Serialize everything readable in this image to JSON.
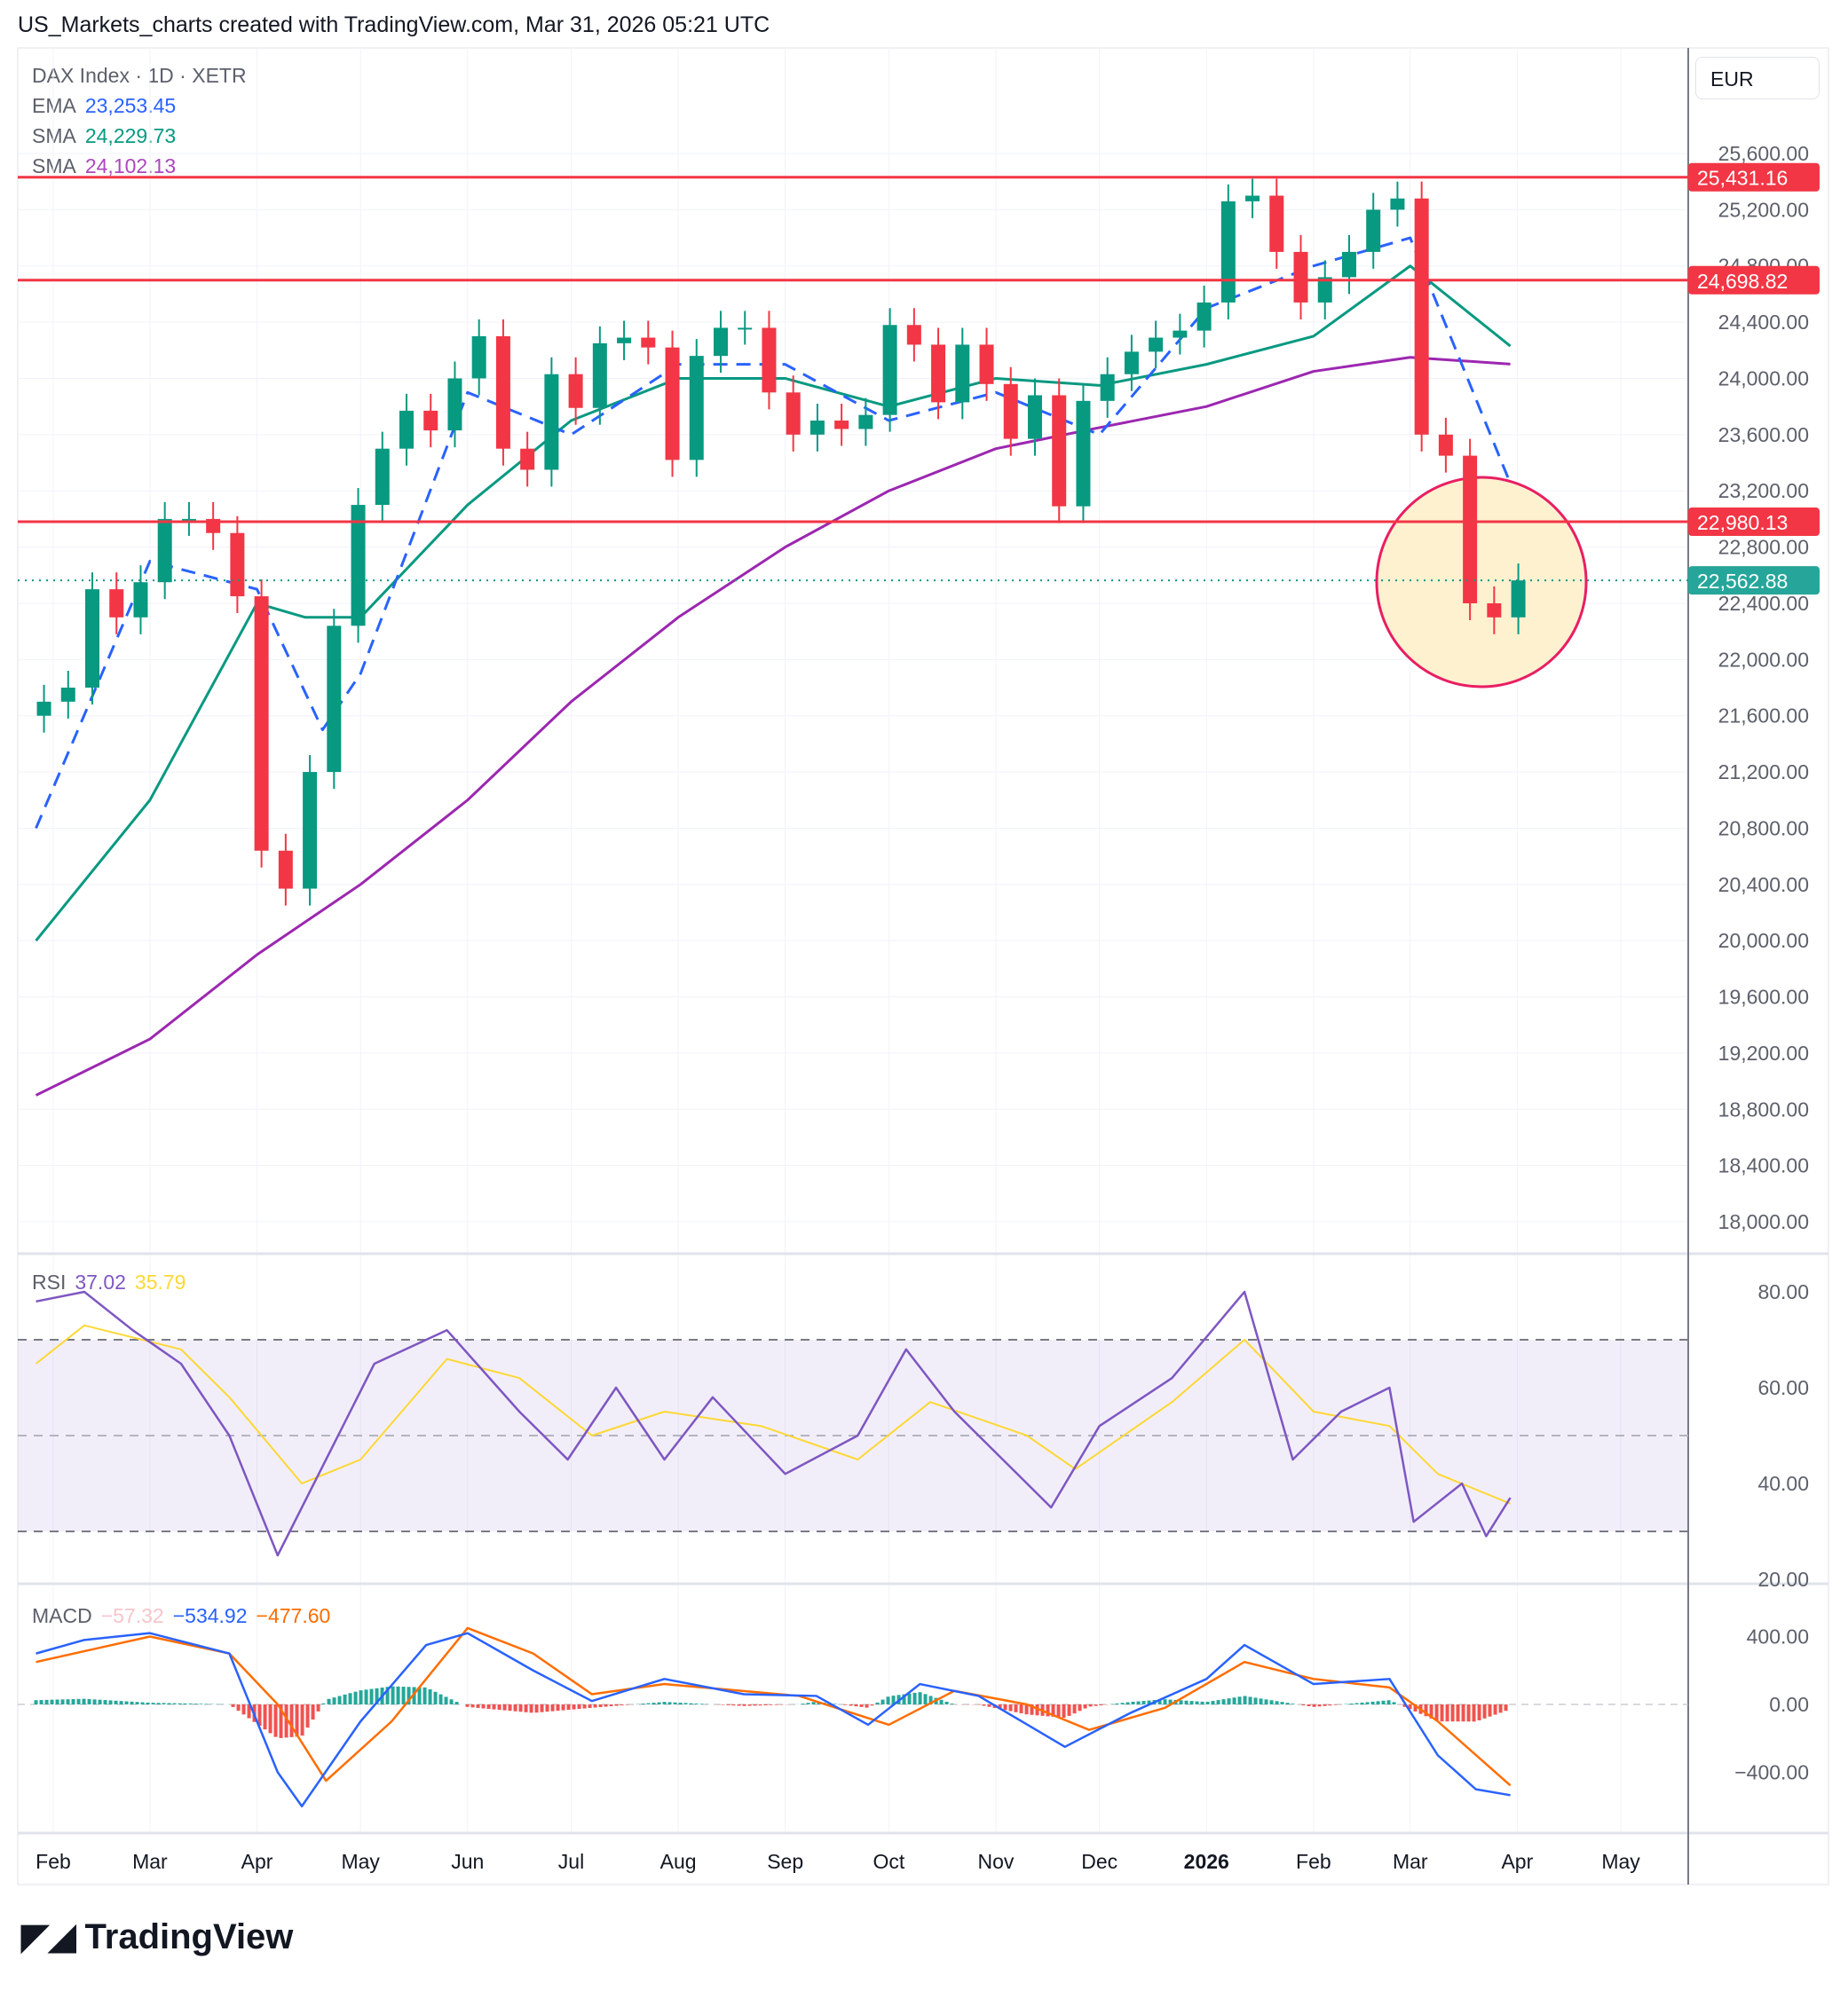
{
  "header": {
    "title": "US_Markets_charts created with TradingView.com, Mar 31, 2026 05:21 UTC"
  },
  "legend": {
    "symbol": "DAX Index · 1D · XETR",
    "ema_label": "EMA",
    "ema_value": "23,253.45",
    "sma1_label": "SMA",
    "sma1_value": "24,229.73",
    "sma2_label": "SMA",
    "sma2_value": "24,102.13"
  },
  "currency": "EUR",
  "rsi_legend": {
    "label": "RSI",
    "value": "37.02",
    "ma_value": "35.79"
  },
  "macd_legend": {
    "label": "MACD",
    "hist": "−57.32",
    "macd": "−534.92",
    "signal": "−477.60"
  },
  "brand": "TradingView",
  "colors": {
    "up": "#089981",
    "down": "#f23645",
    "ema": "#2962ff",
    "sma50": "#089981",
    "sma200": "#9c27b0",
    "level": "#f23645",
    "rsi": "#7e57c2",
    "rsi_ma": "#fdd835",
    "macd": "#2962ff",
    "signal": "#ff6d00",
    "circle": "#e91e63",
    "circle_fill": "#fdf1d0"
  },
  "chart_data": [
    {
      "type": "candlestick",
      "title": "DAX Index · 1D · XETR",
      "ylim": [
        17800,
        25800
      ],
      "y_ticks": [
        25600,
        25200,
        24800,
        24400,
        24000,
        23600,
        23200,
        22800,
        22400,
        22000,
        21600,
        21200,
        20800,
        20400,
        20000,
        19600,
        19200,
        18800,
        18400,
        18000
      ],
      "y_tick_labels": [
        "25,600.00",
        "25,200.00",
        "24,800.00",
        "24,400.00",
        "24,000.00",
        "23,600.00",
        "23,200.00",
        "22,800.00",
        "22,400.00",
        "22,000.00",
        "21,600.00",
        "21,200.00",
        "20,800.00",
        "20,400.00",
        "20,000.00",
        "19,600.00",
        "19,200.00",
        "18,800.00",
        "18,400.00",
        "18,000.00"
      ],
      "x_ticks": [
        {
          "date": "2025-02-01",
          "label": "Feb"
        },
        {
          "date": "2025-03-01",
          "label": "Mar"
        },
        {
          "date": "2025-04-01",
          "label": "Apr"
        },
        {
          "date": "2025-05-01",
          "label": "May"
        },
        {
          "date": "2025-06-01",
          "label": "Jun"
        },
        {
          "date": "2025-07-01",
          "label": "Jul"
        },
        {
          "date": "2025-08-01",
          "label": "Aug"
        },
        {
          "date": "2025-09-01",
          "label": "Sep"
        },
        {
          "date": "2025-10-01",
          "label": "Oct"
        },
        {
          "date": "2025-11-01",
          "label": "Nov"
        },
        {
          "date": "2025-12-01",
          "label": "Dec"
        },
        {
          "date": "2026-01-01",
          "label": "2026"
        },
        {
          "date": "2026-02-01",
          "label": "Feb"
        },
        {
          "date": "2026-03-01",
          "label": "Mar"
        },
        {
          "date": "2026-04-01",
          "label": "Apr"
        },
        {
          "date": "2026-05-01",
          "label": "May"
        }
      ],
      "weekly_close": [
        [
          "2025-01-27",
          21700
        ],
        [
          "2025-02-03",
          21800
        ],
        [
          "2025-02-10",
          22500
        ],
        [
          "2025-02-17",
          22300
        ],
        [
          "2025-02-24",
          22550
        ],
        [
          "2025-03-03",
          23000
        ],
        [
          "2025-03-10",
          23000
        ],
        [
          "2025-03-17",
          22900
        ],
        [
          "2025-03-24",
          22450
        ],
        [
          "2025-03-31",
          20640
        ],
        [
          "2025-04-07",
          20370
        ],
        [
          "2025-04-14",
          21200
        ],
        [
          "2025-04-21",
          22240
        ],
        [
          "2025-04-28",
          23100
        ],
        [
          "2025-05-05",
          23500
        ],
        [
          "2025-05-12",
          23770
        ],
        [
          "2025-05-19",
          23630
        ],
        [
          "2025-05-26",
          24000
        ],
        [
          "2025-06-02",
          24300
        ],
        [
          "2025-06-09",
          23500
        ],
        [
          "2025-06-16",
          23350
        ],
        [
          "2025-06-23",
          24030
        ],
        [
          "2025-06-30",
          23790
        ],
        [
          "2025-07-07",
          24250
        ],
        [
          "2025-07-14",
          24290
        ],
        [
          "2025-07-21",
          24220
        ],
        [
          "2025-07-28",
          23420
        ],
        [
          "2025-08-04",
          24160
        ],
        [
          "2025-08-11",
          24360
        ],
        [
          "2025-08-18",
          24360
        ],
        [
          "2025-08-25",
          23900
        ],
        [
          "2025-09-01",
          23600
        ],
        [
          "2025-09-08",
          23700
        ],
        [
          "2025-09-15",
          23640
        ],
        [
          "2025-09-22",
          23740
        ],
        [
          "2025-09-29",
          24380
        ],
        [
          "2025-10-06",
          24240
        ],
        [
          "2025-10-13",
          23830
        ],
        [
          "2025-10-20",
          24240
        ],
        [
          "2025-10-27",
          23960
        ],
        [
          "2025-11-03",
          23570
        ],
        [
          "2025-11-10",
          23880
        ],
        [
          "2025-11-17",
          23090
        ],
        [
          "2025-11-24",
          23840
        ],
        [
          "2025-12-01",
          24030
        ],
        [
          "2025-12-08",
          24190
        ],
        [
          "2025-12-15",
          24290
        ],
        [
          "2025-12-22",
          24340
        ],
        [
          "2025-12-29",
          24540
        ],
        [
          "2026-01-05",
          25260
        ],
        [
          "2026-01-12",
          25300
        ],
        [
          "2026-01-19",
          24900
        ],
        [
          "2026-01-26",
          24540
        ],
        [
          "2026-02-02",
          24720
        ],
        [
          "2026-02-09",
          24900
        ],
        [
          "2026-02-16",
          25200
        ],
        [
          "2026-02-23",
          25280
        ],
        [
          "2026-03-02",
          23600
        ],
        [
          "2026-03-09",
          23450
        ],
        [
          "2026-03-16",
          22400
        ],
        [
          "2026-03-23",
          22300
        ],
        [
          "2026-03-30",
          22563
        ]
      ],
      "ema": [
        [
          "2025-01-27",
          20800
        ],
        [
          "2025-03-01",
          22700
        ],
        [
          "2025-04-01",
          22500
        ],
        [
          "2025-04-20",
          21500
        ],
        [
          "2025-05-01",
          21900
        ],
        [
          "2025-06-01",
          23900
        ],
        [
          "2025-07-01",
          23600
        ],
        [
          "2025-08-01",
          24100
        ],
        [
          "2025-09-01",
          24100
        ],
        [
          "2025-10-01",
          23700
        ],
        [
          "2025-11-01",
          23900
        ],
        [
          "2025-12-01",
          23600
        ],
        [
          "2026-01-01",
          24500
        ],
        [
          "2026-02-01",
          24800
        ],
        [
          "2026-03-01",
          25000
        ],
        [
          "2026-03-30",
          23253
        ]
      ],
      "sma50": [
        [
          "2025-01-27",
          20000
        ],
        [
          "2025-03-01",
          21000
        ],
        [
          "2025-04-01",
          22400
        ],
        [
          "2025-04-15",
          22300
        ],
        [
          "2025-05-01",
          22300
        ],
        [
          "2025-06-01",
          23100
        ],
        [
          "2025-07-01",
          23700
        ],
        [
          "2025-08-01",
          24000
        ],
        [
          "2025-09-01",
          24000
        ],
        [
          "2025-10-01",
          23800
        ],
        [
          "2025-11-01",
          24000
        ],
        [
          "2025-12-01",
          23950
        ],
        [
          "2026-01-01",
          24100
        ],
        [
          "2026-02-01",
          24300
        ],
        [
          "2026-03-01",
          24800
        ],
        [
          "2026-03-30",
          24230
        ]
      ],
      "sma200": [
        [
          "2025-01-27",
          18900
        ],
        [
          "2025-03-01",
          19300
        ],
        [
          "2025-04-01",
          19900
        ],
        [
          "2025-05-01",
          20400
        ],
        [
          "2025-06-01",
          21000
        ],
        [
          "2025-07-01",
          21700
        ],
        [
          "2025-08-01",
          22300
        ],
        [
          "2025-09-01",
          22800
        ],
        [
          "2025-10-01",
          23200
        ],
        [
          "2025-11-01",
          23500
        ],
        [
          "2025-12-01",
          23650
        ],
        [
          "2026-01-01",
          23800
        ],
        [
          "2026-02-01",
          24050
        ],
        [
          "2026-03-01",
          24150
        ],
        [
          "2026-03-30",
          24102
        ]
      ],
      "levels": [
        {
          "value": 25431.16,
          "label": "25,431.16"
        },
        {
          "value": 24698.82,
          "label": "24,698.82"
        },
        {
          "value": 22980.13,
          "label": "22,980.13"
        }
      ],
      "last_price": {
        "value": 22562.88,
        "label": "22,562.88"
      }
    },
    {
      "type": "line",
      "title": "RSI",
      "ylim": [
        20,
        85
      ],
      "y_ticks": [
        80,
        60,
        40,
        20
      ],
      "y_tick_labels": [
        "80.00",
        "60.00",
        "40.00",
        "20.00"
      ],
      "bands": [
        70,
        50,
        30
      ],
      "rsi": [
        [
          "2025-01-27",
          78
        ],
        [
          "2025-02-10",
          80
        ],
        [
          "2025-02-24",
          72
        ],
        [
          "2025-03-10",
          65
        ],
        [
          "2025-03-24",
          50
        ],
        [
          "2025-04-07",
          25
        ],
        [
          "2025-04-21",
          45
        ],
        [
          "2025-05-05",
          65
        ],
        [
          "2025-05-26",
          72
        ],
        [
          "2025-06-16",
          55
        ],
        [
          "2025-06-30",
          45
        ],
        [
          "2025-07-14",
          60
        ],
        [
          "2025-07-28",
          45
        ],
        [
          "2025-08-11",
          58
        ],
        [
          "2025-09-01",
          42
        ],
        [
          "2025-09-22",
          50
        ],
        [
          "2025-10-06",
          68
        ],
        [
          "2025-10-20",
          55
        ],
        [
          "2025-11-03",
          45
        ],
        [
          "2025-11-17",
          35
        ],
        [
          "2025-12-01",
          52
        ],
        [
          "2025-12-22",
          62
        ],
        [
          "2026-01-12",
          80
        ],
        [
          "2026-01-26",
          45
        ],
        [
          "2026-02-09",
          55
        ],
        [
          "2026-02-23",
          60
        ],
        [
          "2026-03-02",
          32
        ],
        [
          "2026-03-16",
          40
        ],
        [
          "2026-03-23",
          29
        ],
        [
          "2026-03-30",
          37.02
        ]
      ],
      "rsi_ma": [
        [
          "2025-01-27",
          65
        ],
        [
          "2025-02-10",
          73
        ],
        [
          "2025-03-10",
          68
        ],
        [
          "2025-03-24",
          58
        ],
        [
          "2025-04-14",
          40
        ],
        [
          "2025-05-01",
          45
        ],
        [
          "2025-05-26",
          66
        ],
        [
          "2025-06-16",
          62
        ],
        [
          "2025-07-07",
          50
        ],
        [
          "2025-07-28",
          55
        ],
        [
          "2025-08-25",
          52
        ],
        [
          "2025-09-22",
          45
        ],
        [
          "2025-10-13",
          57
        ],
        [
          "2025-11-10",
          50
        ],
        [
          "2025-11-24",
          43
        ],
        [
          "2025-12-22",
          57
        ],
        [
          "2026-01-12",
          70
        ],
        [
          "2026-02-01",
          55
        ],
        [
          "2026-02-23",
          52
        ],
        [
          "2026-03-09",
          42
        ],
        [
          "2026-03-30",
          35.79
        ]
      ]
    },
    {
      "type": "line+bar",
      "title": "MACD",
      "ylim": [
        -650,
        600
      ],
      "y_ticks": [
        400,
        0,
        -400
      ],
      "y_tick_labels": [
        "400.00",
        "0.00",
        "−400.00"
      ],
      "macd": [
        [
          "2025-01-27",
          300
        ],
        [
          "2025-02-10",
          380
        ],
        [
          "2025-03-01",
          420
        ],
        [
          "2025-03-24",
          300
        ],
        [
          "2025-04-07",
          -400
        ],
        [
          "2025-04-14",
          -600
        ],
        [
          "2025-05-01",
          -100
        ],
        [
          "2025-05-20",
          350
        ],
        [
          "2025-06-01",
          420
        ],
        [
          "2025-06-20",
          200
        ],
        [
          "2025-07-07",
          20
        ],
        [
          "2025-07-28",
          150
        ],
        [
          "2025-08-20",
          60
        ],
        [
          "2025-09-10",
          50
        ],
        [
          "2025-09-25",
          -120
        ],
        [
          "2025-10-10",
          120
        ],
        [
          "2025-10-27",
          50
        ],
        [
          "2025-11-21",
          -250
        ],
        [
          "2025-12-10",
          -50
        ],
        [
          "2026-01-01",
          150
        ],
        [
          "2026-01-12",
          350
        ],
        [
          "2026-02-01",
          120
        ],
        [
          "2026-02-23",
          150
        ],
        [
          "2026-03-09",
          -300
        ],
        [
          "2026-03-20",
          -500
        ],
        [
          "2026-03-30",
          -534.92
        ]
      ],
      "signal": [
        [
          "2025-01-27",
          250
        ],
        [
          "2025-03-01",
          400
        ],
        [
          "2025-03-24",
          300
        ],
        [
          "2025-04-07",
          0
        ],
        [
          "2025-04-21",
          -450
        ],
        [
          "2025-05-10",
          -100
        ],
        [
          "2025-06-01",
          450
        ],
        [
          "2025-06-20",
          300
        ],
        [
          "2025-07-07",
          60
        ],
        [
          "2025-07-28",
          120
        ],
        [
          "2025-09-05",
          50
        ],
        [
          "2025-10-01",
          -120
        ],
        [
          "2025-10-20",
          80
        ],
        [
          "2025-11-10",
          0
        ],
        [
          "2025-11-28",
          -150
        ],
        [
          "2025-12-20",
          -20
        ],
        [
          "2026-01-12",
          250
        ],
        [
          "2026-02-01",
          150
        ],
        [
          "2026-02-23",
          100
        ],
        [
          "2026-03-09",
          -100
        ],
        [
          "2026-03-30",
          -477.6
        ]
      ]
    }
  ]
}
